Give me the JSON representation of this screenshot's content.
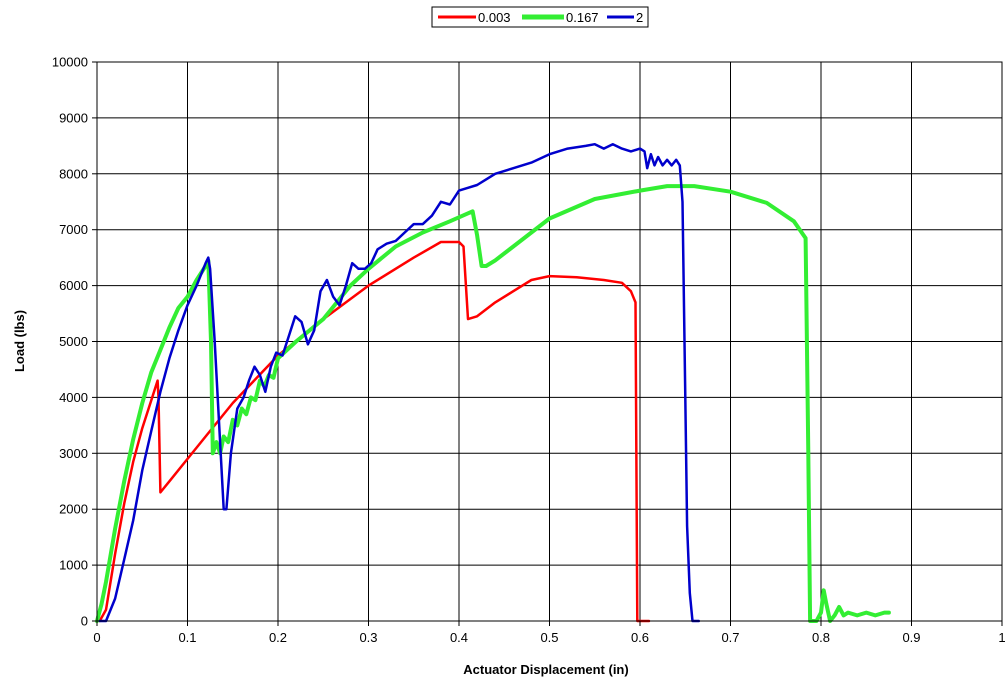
{
  "chart_data": {
    "type": "line",
    "title": "",
    "xlabel": "Actuator Displacement (in)",
    "ylabel": "Load (lbs)",
    "xlim": [
      0,
      1
    ],
    "ylim": [
      0,
      10000
    ],
    "x_ticks": [
      0,
      0.1,
      0.2,
      0.3,
      0.4,
      0.5,
      0.6,
      0.7,
      0.8,
      0.9,
      1
    ],
    "y_ticks": [
      0,
      1000,
      2000,
      3000,
      4000,
      5000,
      6000,
      7000,
      8000,
      9000,
      10000
    ],
    "x_tick_labels": [
      "0",
      "0.1",
      "0.2",
      "0.3",
      "0.4",
      "0.5",
      "0.6",
      "0.7",
      "0.8",
      "0.9",
      "1"
    ],
    "y_tick_labels": [
      "0",
      "1000",
      "2000",
      "3000",
      "4000",
      "5000",
      "6000",
      "7000",
      "8000",
      "9000",
      "10000"
    ],
    "grid": true,
    "legend_position": "top-center",
    "series": [
      {
        "name": "0.003",
        "color": "#ff0000",
        "points": [
          [
            0.003,
            0
          ],
          [
            0.01,
            200
          ],
          [
            0.02,
            1200
          ],
          [
            0.03,
            2100
          ],
          [
            0.04,
            2850
          ],
          [
            0.05,
            3450
          ],
          [
            0.06,
            3950
          ],
          [
            0.067,
            4300
          ],
          [
            0.068,
            4000
          ],
          [
            0.07,
            2300
          ],
          [
            0.08,
            2500
          ],
          [
            0.1,
            2900
          ],
          [
            0.12,
            3300
          ],
          [
            0.15,
            3900
          ],
          [
            0.2,
            4750
          ],
          [
            0.25,
            5400
          ],
          [
            0.3,
            6000
          ],
          [
            0.35,
            6500
          ],
          [
            0.38,
            6780
          ],
          [
            0.4,
            6780
          ],
          [
            0.405,
            6700
          ],
          [
            0.41,
            5400
          ],
          [
            0.42,
            5450
          ],
          [
            0.44,
            5700
          ],
          [
            0.46,
            5900
          ],
          [
            0.48,
            6100
          ],
          [
            0.5,
            6170
          ],
          [
            0.53,
            6150
          ],
          [
            0.56,
            6100
          ],
          [
            0.58,
            6050
          ],
          [
            0.59,
            5900
          ],
          [
            0.595,
            5700
          ],
          [
            0.597,
            0
          ],
          [
            0.61,
            0
          ]
        ]
      },
      {
        "name": "0.167",
        "color": "#33ee33",
        "points": [
          [
            0,
            0
          ],
          [
            0.005,
            300
          ],
          [
            0.01,
            700
          ],
          [
            0.02,
            1650
          ],
          [
            0.03,
            2500
          ],
          [
            0.04,
            3250
          ],
          [
            0.05,
            3900
          ],
          [
            0.06,
            4450
          ],
          [
            0.07,
            4850
          ],
          [
            0.08,
            5250
          ],
          [
            0.09,
            5600
          ],
          [
            0.1,
            5800
          ],
          [
            0.11,
            6100
          ],
          [
            0.12,
            6350
          ],
          [
            0.123,
            6450
          ],
          [
            0.126,
            5000
          ],
          [
            0.128,
            3000
          ],
          [
            0.132,
            3200
          ],
          [
            0.136,
            3000
          ],
          [
            0.14,
            3300
          ],
          [
            0.145,
            3200
          ],
          [
            0.15,
            3600
          ],
          [
            0.155,
            3500
          ],
          [
            0.16,
            3800
          ],
          [
            0.165,
            3700
          ],
          [
            0.17,
            4000
          ],
          [
            0.175,
            3950
          ],
          [
            0.18,
            4300
          ],
          [
            0.185,
            4200
          ],
          [
            0.19,
            4400
          ],
          [
            0.195,
            4350
          ],
          [
            0.2,
            4700
          ],
          [
            0.22,
            5000
          ],
          [
            0.25,
            5400
          ],
          [
            0.28,
            6000
          ],
          [
            0.3,
            6300
          ],
          [
            0.33,
            6700
          ],
          [
            0.36,
            6950
          ],
          [
            0.39,
            7150
          ],
          [
            0.415,
            7330
          ],
          [
            0.42,
            6900
          ],
          [
            0.425,
            6350
          ],
          [
            0.43,
            6350
          ],
          [
            0.44,
            6450
          ],
          [
            0.46,
            6700
          ],
          [
            0.5,
            7200
          ],
          [
            0.55,
            7550
          ],
          [
            0.6,
            7700
          ],
          [
            0.63,
            7780
          ],
          [
            0.66,
            7780
          ],
          [
            0.7,
            7680
          ],
          [
            0.74,
            7480
          ],
          [
            0.77,
            7150
          ],
          [
            0.783,
            6850
          ],
          [
            0.786,
            3000
          ],
          [
            0.788,
            0
          ],
          [
            0.795,
            0
          ],
          [
            0.8,
            150
          ],
          [
            0.803,
            550
          ],
          [
            0.806,
            300
          ],
          [
            0.81,
            0
          ],
          [
            0.815,
            100
          ],
          [
            0.82,
            250
          ],
          [
            0.825,
            100
          ],
          [
            0.83,
            150
          ],
          [
            0.84,
            100
          ],
          [
            0.85,
            150
          ],
          [
            0.86,
            100
          ],
          [
            0.87,
            150
          ],
          [
            0.875,
            150
          ]
        ]
      },
      {
        "name": "2",
        "color": "#0000cc",
        "points": [
          [
            0.003,
            0
          ],
          [
            0.01,
            0
          ],
          [
            0.02,
            400
          ],
          [
            0.03,
            1100
          ],
          [
            0.04,
            1800
          ],
          [
            0.05,
            2700
          ],
          [
            0.06,
            3400
          ],
          [
            0.07,
            4100
          ],
          [
            0.08,
            4700
          ],
          [
            0.09,
            5200
          ],
          [
            0.1,
            5650
          ],
          [
            0.11,
            6000
          ],
          [
            0.12,
            6400
          ],
          [
            0.123,
            6500
          ],
          [
            0.125,
            6300
          ],
          [
            0.13,
            5000
          ],
          [
            0.135,
            3500
          ],
          [
            0.14,
            2000
          ],
          [
            0.143,
            2000
          ],
          [
            0.148,
            3000
          ],
          [
            0.155,
            3800
          ],
          [
            0.162,
            4000
          ],
          [
            0.168,
            4300
          ],
          [
            0.174,
            4550
          ],
          [
            0.18,
            4400
          ],
          [
            0.186,
            4100
          ],
          [
            0.192,
            4550
          ],
          [
            0.198,
            4800
          ],
          [
            0.205,
            4750
          ],
          [
            0.212,
            5100
          ],
          [
            0.219,
            5450
          ],
          [
            0.226,
            5350
          ],
          [
            0.233,
            4950
          ],
          [
            0.24,
            5200
          ],
          [
            0.247,
            5900
          ],
          [
            0.254,
            6100
          ],
          [
            0.261,
            5800
          ],
          [
            0.268,
            5650
          ],
          [
            0.275,
            6000
          ],
          [
            0.282,
            6400
          ],
          [
            0.289,
            6300
          ],
          [
            0.296,
            6300
          ],
          [
            0.303,
            6400
          ],
          [
            0.31,
            6650
          ],
          [
            0.32,
            6750
          ],
          [
            0.33,
            6800
          ],
          [
            0.34,
            6950
          ],
          [
            0.35,
            7100
          ],
          [
            0.36,
            7100
          ],
          [
            0.37,
            7250
          ],
          [
            0.38,
            7500
          ],
          [
            0.39,
            7450
          ],
          [
            0.4,
            7700
          ],
          [
            0.41,
            7750
          ],
          [
            0.42,
            7800
          ],
          [
            0.43,
            7900
          ],
          [
            0.44,
            8000
          ],
          [
            0.46,
            8100
          ],
          [
            0.48,
            8200
          ],
          [
            0.5,
            8350
          ],
          [
            0.52,
            8450
          ],
          [
            0.54,
            8500
          ],
          [
            0.55,
            8530
          ],
          [
            0.56,
            8450
          ],
          [
            0.57,
            8530
          ],
          [
            0.58,
            8450
          ],
          [
            0.59,
            8400
          ],
          [
            0.6,
            8450
          ],
          [
            0.605,
            8400
          ],
          [
            0.608,
            8100
          ],
          [
            0.612,
            8350
          ],
          [
            0.616,
            8150
          ],
          [
            0.62,
            8300
          ],
          [
            0.625,
            8150
          ],
          [
            0.63,
            8250
          ],
          [
            0.635,
            8150
          ],
          [
            0.64,
            8250
          ],
          [
            0.644,
            8150
          ],
          [
            0.647,
            7500
          ],
          [
            0.65,
            4000
          ],
          [
            0.652,
            1700
          ],
          [
            0.655,
            500
          ],
          [
            0.658,
            0
          ],
          [
            0.665,
            0
          ]
        ]
      }
    ]
  }
}
